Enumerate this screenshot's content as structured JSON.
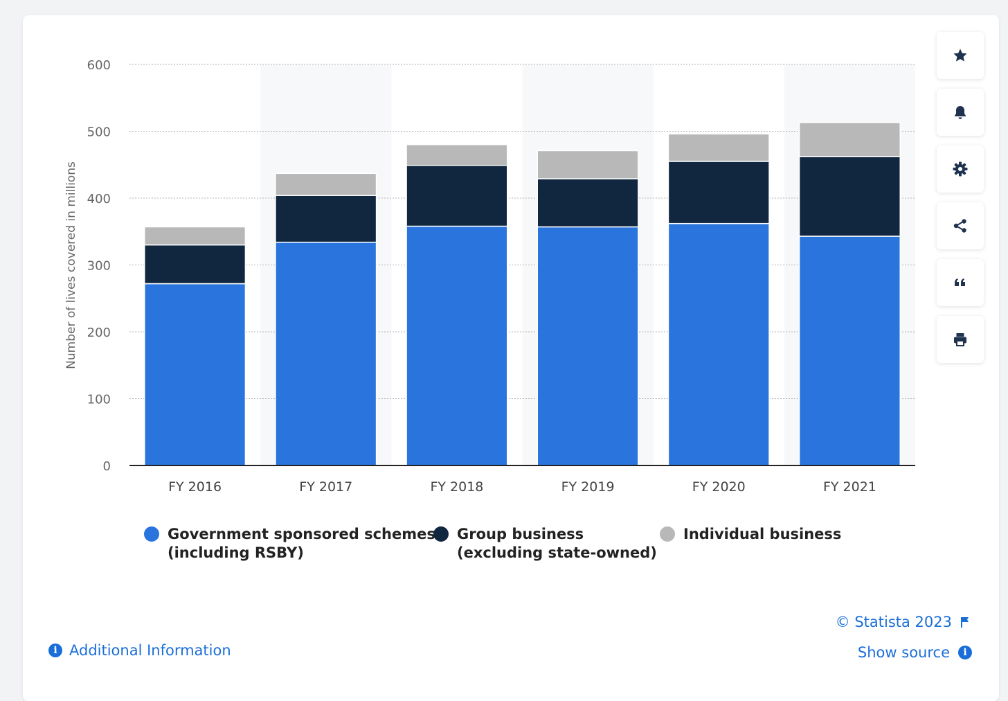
{
  "chart_data": {
    "type": "bar",
    "stacked": true,
    "categories": [
      "FY 2016",
      "FY 2017",
      "FY 2018",
      "FY 2019",
      "FY 2020",
      "FY 2021"
    ],
    "series": [
      {
        "name": "Government sponsored schemes\n(including RSBY)",
        "color": "#2a75dd",
        "values": [
          272,
          334,
          358,
          357,
          362,
          343
        ]
      },
      {
        "name": "Group business\n(excluding state-owned)",
        "color": "#11263f",
        "values": [
          58,
          70,
          91,
          72,
          93,
          119
        ]
      },
      {
        "name": "Individual business",
        "color": "#b8b8b8",
        "values": [
          27,
          33,
          31,
          42,
          41,
          51
        ]
      }
    ],
    "ylabel": "Number of lives covered in millions",
    "xlabel": "",
    "ylim": [
      0,
      600
    ],
    "yticks": [
      0,
      100,
      200,
      300,
      400,
      500,
      600
    ],
    "grid": true,
    "legend": "bottom"
  },
  "tools": [
    {
      "name": "star-icon"
    },
    {
      "name": "bell-icon"
    },
    {
      "name": "gear-icon"
    },
    {
      "name": "share-icon"
    },
    {
      "name": "quote-icon"
    },
    {
      "name": "print-icon"
    }
  ],
  "footer": {
    "copyright": "© Statista 2023",
    "show_source": "Show source",
    "additional_info": "Additional Information"
  }
}
